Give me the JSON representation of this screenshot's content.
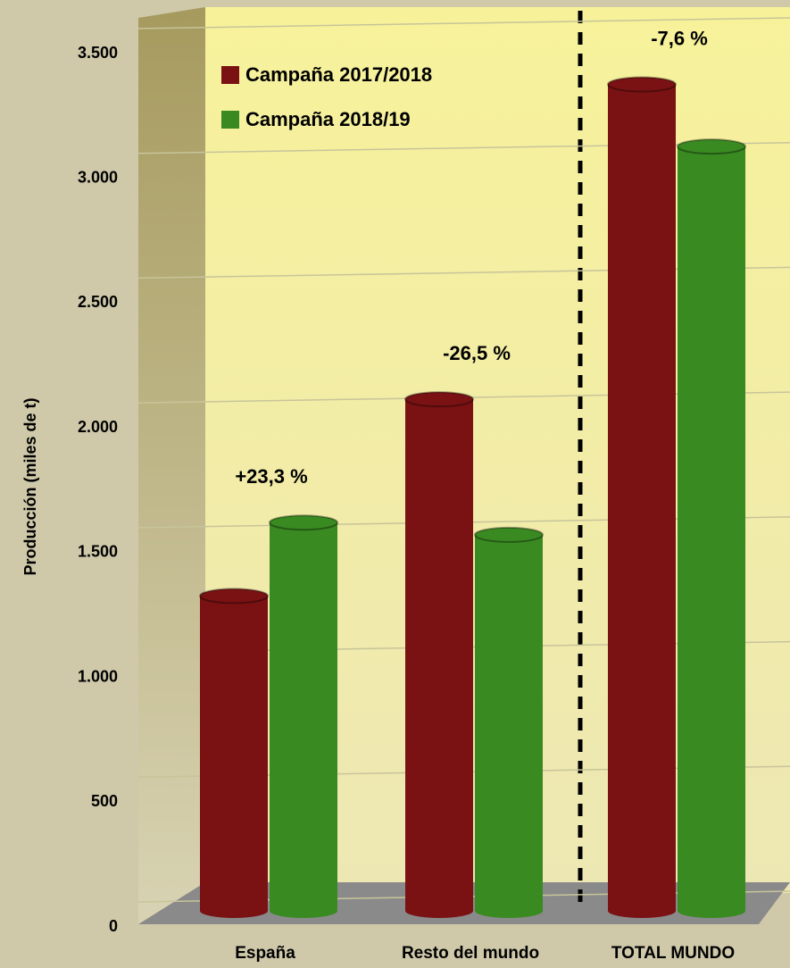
{
  "chart_data": {
    "type": "bar",
    "y_label": "Producción (miles de t)",
    "categories": [
      "España",
      "Resto del mundo",
      "TOTAL MUNDO"
    ],
    "series": [
      {
        "name": "Campaña 2017/2018",
        "color": "#7a1214",
        "values": [
          1262,
          2050,
          3312
        ]
      },
      {
        "name": "Campaña 2018/19",
        "color": "#3a8a22",
        "values": [
          1556,
          1507,
          3063
        ]
      }
    ],
    "annotations": [
      "+23,3 %",
      "-26,5 %",
      "-7,6 %"
    ],
    "ylim": [
      0,
      3500
    ],
    "yticks": [
      {
        "value": 0,
        "label": "0"
      },
      {
        "value": 500,
        "label": "500"
      },
      {
        "value": 1000,
        "label": "1.000"
      },
      {
        "value": 1500,
        "label": "1.500"
      },
      {
        "value": 2000,
        "label": "2.000"
      },
      {
        "value": 2500,
        "label": "2.500"
      },
      {
        "value": 3000,
        "label": "3.000"
      },
      {
        "value": 3500,
        "label": "3.500"
      }
    ],
    "grid": true
  }
}
